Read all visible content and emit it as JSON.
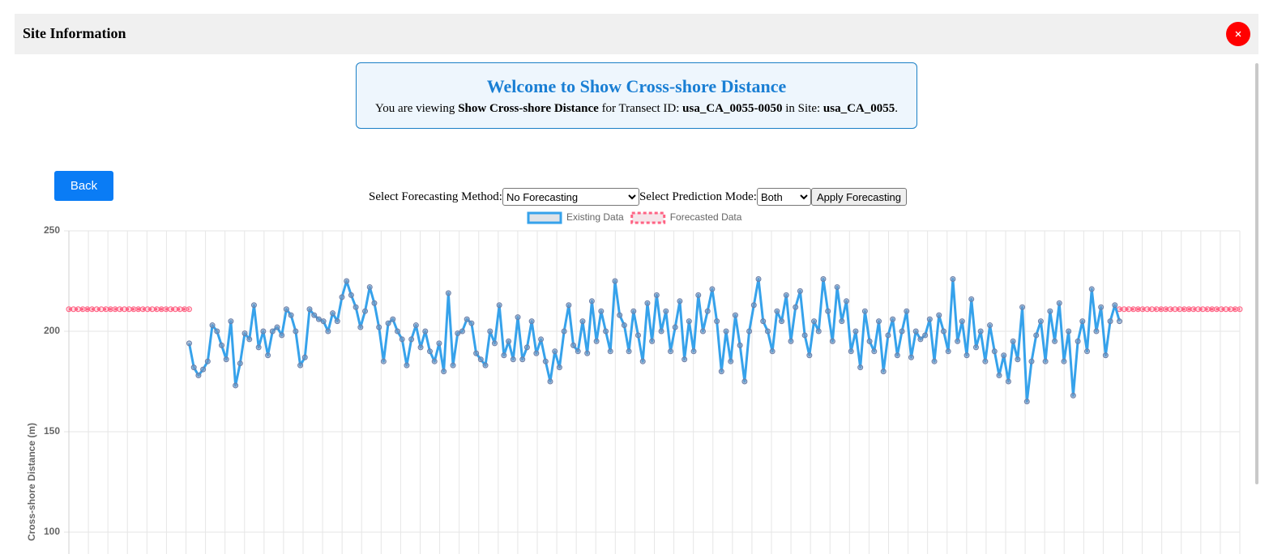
{
  "header": {
    "title": "Site Information"
  },
  "welcome": {
    "title": "Welcome to Show Cross-shore Distance",
    "parts": [
      "You are viewing ",
      "Show Cross-shore Distance",
      " for Transect ID: ",
      "usa_CA_0055-0050",
      " in Site: ",
      "usa_CA_0055",
      "."
    ]
  },
  "back": "Back",
  "controls": {
    "method_label": "Select Forecasting Method:",
    "method": "No Forecasting",
    "mode_label": "Select Prediction Mode:",
    "mode": "Both",
    "apply": "Apply Forecasting"
  },
  "chart_data": {
    "type": "line",
    "ylabel": "Cross-shore Distance (m)",
    "ylim": [
      100,
      250
    ],
    "yticks": [
      100,
      150,
      200,
      250
    ],
    "grid": true,
    "legend": "top",
    "series": [
      {
        "name": "Existing Data",
        "color": "#36a2eb",
        "values": [
          null,
          null,
          null,
          null,
          null,
          null,
          null,
          null,
          null,
          null,
          null,
          null,
          null,
          null,
          null,
          null,
          null,
          null,
          null,
          null,
          null,
          null,
          null,
          null,
          null,
          null,
          194,
          182,
          178,
          181,
          185,
          203,
          200,
          193,
          186,
          205,
          173,
          184,
          199,
          196,
          213,
          192,
          200,
          188,
          200,
          202,
          198,
          211,
          208,
          200,
          183,
          187,
          211,
          208,
          206,
          205,
          200,
          209,
          205,
          217,
          225,
          218,
          212,
          202,
          210,
          222,
          214,
          202,
          185,
          204,
          206,
          200,
          196,
          183,
          196,
          203,
          192,
          200,
          190,
          185,
          194,
          180,
          219,
          183,
          199,
          200,
          206,
          204,
          189,
          186,
          183,
          200,
          194,
          213,
          188,
          195,
          186,
          207,
          186,
          192,
          205,
          189,
          196,
          185,
          175,
          190,
          182,
          200,
          213,
          193,
          190,
          205,
          189,
          215,
          195,
          210,
          200,
          190,
          225,
          208,
          203,
          190,
          210,
          198,
          185,
          214,
          195,
          218,
          200,
          210,
          190,
          202,
          215,
          186,
          205,
          190,
          218,
          200,
          210,
          221,
          205,
          180,
          200,
          185,
          208,
          193,
          175,
          200,
          213,
          226,
          205,
          200,
          190,
          210,
          205,
          218,
          195,
          212,
          220,
          198,
          188,
          205,
          200,
          226,
          210,
          195,
          222,
          205,
          215,
          190,
          200,
          182,
          210,
          195,
          190,
          205,
          180,
          198,
          206,
          188,
          200,
          210,
          187,
          200,
          196,
          198,
          206,
          185,
          208,
          200,
          190,
          226,
          195,
          205,
          188,
          216,
          192,
          200,
          185,
          203,
          190,
          178,
          188,
          175,
          195,
          186,
          212,
          165,
          185,
          198,
          205,
          185,
          210,
          195,
          214,
          185,
          200,
          168,
          195,
          205,
          190,
          221,
          200,
          212,
          188,
          205,
          213,
          205,
          null,
          null,
          null,
          null,
          null,
          null,
          null,
          null,
          null,
          null,
          null,
          null,
          null,
          null,
          null,
          null,
          null,
          null,
          null,
          null,
          null,
          null,
          null,
          null,
          null,
          null
        ]
      },
      {
        "name": "Forecasted Data",
        "color": "#ff6384",
        "dashed": true,
        "values": [
          211,
          211,
          211,
          211,
          211,
          211,
          211,
          211,
          211,
          211,
          211,
          211,
          211,
          211,
          211,
          211,
          211,
          211,
          211,
          211,
          211,
          211,
          211,
          211,
          211,
          211,
          211,
          null,
          null,
          null,
          null,
          null,
          null,
          null,
          null,
          null,
          null,
          null,
          null,
          null,
          null,
          null,
          null,
          null,
          null,
          null,
          null,
          null,
          null,
          null,
          null,
          null,
          null,
          null,
          null,
          null,
          null,
          null,
          null,
          null,
          null,
          null,
          null,
          null,
          null,
          null,
          null,
          null,
          null,
          null,
          null,
          null,
          null,
          null,
          null,
          null,
          null,
          null,
          null,
          null,
          null,
          null,
          null,
          null,
          null,
          null,
          null,
          null,
          null,
          null,
          null,
          null,
          null,
          null,
          null,
          null,
          null,
          null,
          null,
          null,
          null,
          null,
          null,
          null,
          null,
          null,
          null,
          null,
          null,
          null,
          null,
          null,
          null,
          null,
          null,
          null,
          null,
          null,
          null,
          null,
          null,
          null,
          null,
          null,
          null,
          null,
          null,
          null,
          null,
          null,
          null,
          null,
          null,
          null,
          null,
          null,
          null,
          null,
          null,
          null,
          null,
          null,
          null,
          null,
          null,
          null,
          null,
          null,
          null,
          null,
          null,
          null,
          null,
          null,
          null,
          null,
          null,
          null,
          null,
          null,
          null,
          null,
          null,
          null,
          null,
          null,
          null,
          null,
          null,
          null,
          null,
          null,
          null,
          null,
          null,
          null,
          null,
          null,
          null,
          null,
          null,
          null,
          null,
          null,
          null,
          null,
          null,
          null,
          null,
          null,
          null,
          null,
          null,
          null,
          null,
          null,
          null,
          null,
          null,
          null,
          null,
          null,
          null,
          null,
          null,
          null,
          null,
          null,
          null,
          null,
          null,
          null,
          null,
          null,
          null,
          null,
          null,
          null,
          null,
          null,
          null,
          null,
          null,
          null,
          null,
          null,
          null,
          211,
          211,
          211,
          211,
          211,
          211,
          211,
          211,
          211,
          211,
          211,
          211,
          211,
          211,
          211,
          211,
          211,
          211,
          211,
          211,
          211,
          211,
          211,
          211,
          211,
          211,
          211
        ]
      }
    ]
  }
}
